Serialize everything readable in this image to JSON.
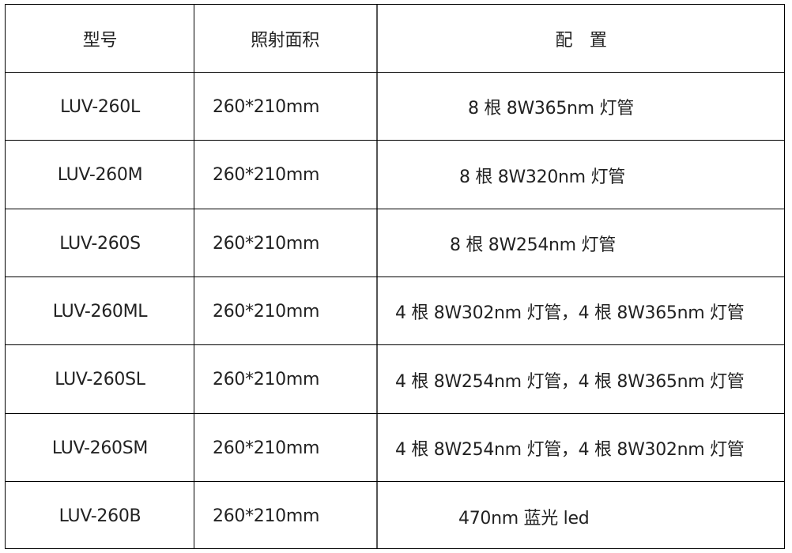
{
  "table": {
    "headers": [
      "型号",
      "照射面积",
      "配　置"
    ],
    "rows": [
      {
        "model": "LUV-260L",
        "area": "260*210mm",
        "config": "8 根 8W365nm 灯管"
      },
      {
        "model": "LUV-260M",
        "area": "260*210mm",
        "config": "8 根 8W320nm 灯管"
      },
      {
        "model": "LUV-260S",
        "area": "260*210mm",
        "config": "8 根 8W254nm 灯管"
      },
      {
        "model": "LUV-260ML",
        "area": "260*210mm",
        "config": "4 根 8W302nm 灯管，4 根 8W365nm 灯管"
      },
      {
        "model": "LUV-260SL",
        "area": "260*210mm",
        "config": "4 根 8W254nm 灯管，4 根 8W365nm 灯管"
      },
      {
        "model": "LUV-260SM",
        "area": "260*210mm",
        "config": "4 根 8W254nm 灯管，4 根 8W302nm 灯管"
      },
      {
        "model": "LUV-260B",
        "area": "260*210mm",
        "config": "470nm 蓝光 led"
      }
    ]
  }
}
